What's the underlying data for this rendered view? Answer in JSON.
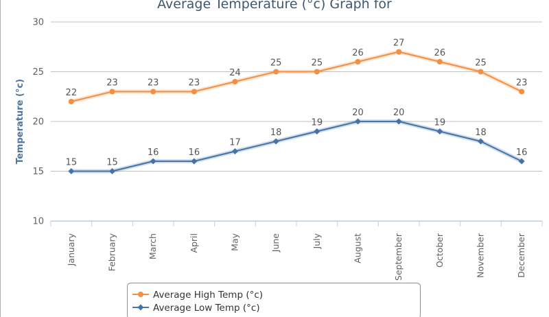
{
  "chart_data": {
    "type": "line",
    "title": "Average Temperature (°c) Graph for",
    "ylabel": "Temperature (°c)",
    "xlabel": "",
    "categories": [
      "January",
      "February",
      "March",
      "April",
      "May",
      "June",
      "July",
      "August",
      "September",
      "October",
      "November",
      "December"
    ],
    "ylim": [
      10,
      30
    ],
    "yticks": [
      "10",
      "15",
      "20",
      "25",
      "30"
    ],
    "grid": true,
    "legend_position": "bottom-left",
    "series": [
      {
        "name": "Average High Temp (°c)",
        "values": [
          22,
          23,
          23,
          23,
          24,
          25,
          25,
          26,
          27,
          26,
          25,
          23
        ],
        "color": "#f28f43",
        "marker": "circle"
      },
      {
        "name": "Average Low Temp (°c)",
        "values": [
          15,
          15,
          16,
          16,
          17,
          18,
          19,
          20,
          20,
          19,
          18,
          16
        ],
        "color": "#4572a7",
        "marker": "diamond"
      }
    ]
  }
}
